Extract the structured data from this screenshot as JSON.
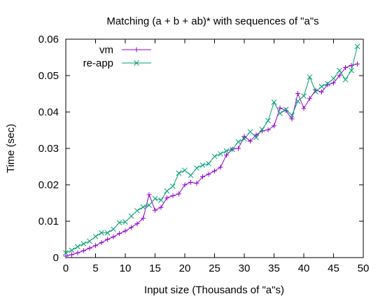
{
  "chart_data": {
    "type": "line",
    "title": "Matching (a + b + ab)* with sequences of \"a\"s",
    "xlabel": "Input size (Thousands of \"a\"s)",
    "ylabel": "Time (sec)",
    "xlim": [
      0,
      50
    ],
    "ylim": [
      0,
      0.06
    ],
    "xticks": [
      0,
      5,
      10,
      15,
      20,
      25,
      30,
      35,
      40,
      45,
      50
    ],
    "yticks": [
      0,
      0.01,
      0.02,
      0.03,
      0.04,
      0.05,
      0.06
    ],
    "xtick_labels": [
      "0",
      "5",
      "10",
      "15",
      "20",
      "25",
      "30",
      "35",
      "40",
      "45",
      "50"
    ],
    "ytick_labels": [
      "0",
      "0.01",
      "0.02",
      "0.03",
      "0.04",
      "0.05",
      "0.06"
    ],
    "grid": false,
    "legend_position": "top-left",
    "x": [
      0,
      1,
      2,
      3,
      4,
      5,
      6,
      7,
      8,
      9,
      10,
      11,
      12,
      13,
      14,
      15,
      16,
      17,
      18,
      19,
      20,
      21,
      22,
      23,
      24,
      25,
      26,
      27,
      28,
      29,
      30,
      31,
      32,
      33,
      34,
      35,
      36,
      37,
      38,
      39,
      40,
      41,
      42,
      43,
      44,
      45,
      46,
      47,
      48,
      49
    ],
    "series": [
      {
        "name": "vm",
        "color": "#9400d3",
        "marker": "plus",
        "values": [
          0.0004,
          0.0008,
          0.0013,
          0.0019,
          0.0026,
          0.0033,
          0.0041,
          0.005,
          0.0057,
          0.0066,
          0.0073,
          0.0083,
          0.0093,
          0.0108,
          0.0173,
          0.013,
          0.0138,
          0.0164,
          0.017,
          0.0175,
          0.02,
          0.0207,
          0.0204,
          0.0222,
          0.0229,
          0.0238,
          0.0248,
          0.0282,
          0.0298,
          0.03,
          0.0333,
          0.032,
          0.0337,
          0.0348,
          0.0351,
          0.0362,
          0.0411,
          0.0404,
          0.0381,
          0.0451,
          0.041,
          0.0437,
          0.046,
          0.0455,
          0.0475,
          0.048,
          0.05,
          0.0522,
          0.0528,
          0.0532
        ]
      },
      {
        "name": "re-app",
        "color": "#009e73",
        "marker": "cross",
        "values": [
          0.0013,
          0.002,
          0.003,
          0.0038,
          0.0045,
          0.0058,
          0.0068,
          0.0068,
          0.0078,
          0.0096,
          0.0098,
          0.0114,
          0.0129,
          0.0139,
          0.0144,
          0.0162,
          0.0158,
          0.0183,
          0.0196,
          0.0232,
          0.024,
          0.0226,
          0.0246,
          0.0254,
          0.0258,
          0.0278,
          0.0285,
          0.0293,
          0.0297,
          0.0318,
          0.0326,
          0.0346,
          0.033,
          0.0352,
          0.0376,
          0.0427,
          0.0396,
          0.0407,
          0.0391,
          0.043,
          0.0444,
          0.0496,
          0.0456,
          0.047,
          0.0478,
          0.0492,
          0.0514,
          0.0489,
          0.0514,
          0.058
        ]
      }
    ]
  }
}
